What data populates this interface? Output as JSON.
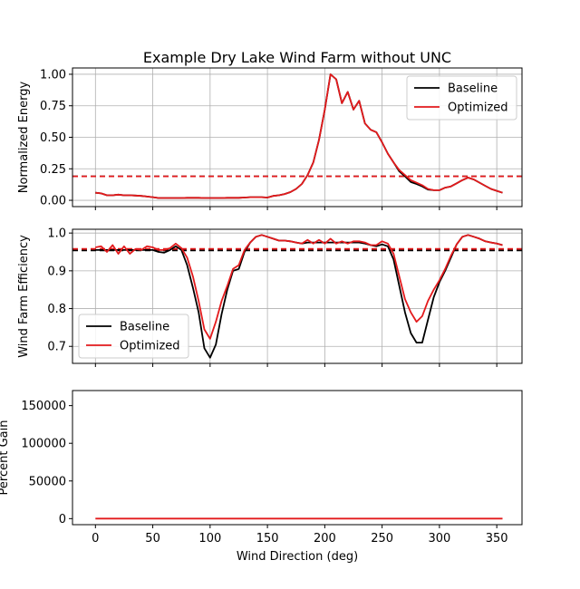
{
  "figure": {
    "title": "Example Dry Lake Wind Farm without UNC"
  },
  "chart_data": [
    {
      "type": "line",
      "title": "Example Dry Lake Wind Farm without UNC",
      "xlabel": "",
      "ylabel": "Normalized Energy",
      "xlim": [
        -20,
        372
      ],
      "ylim": [
        -0.05,
        1.05
      ],
      "xticks": [
        0,
        50,
        100,
        150,
        200,
        250,
        300,
        350
      ],
      "yticks": [
        0.0,
        0.25,
        0.5,
        0.75,
        1.0
      ],
      "ytick_labels": [
        "0.00",
        "0.25",
        "0.50",
        "0.75",
        "1.00"
      ],
      "show_xtick_labels": false,
      "grid": true,
      "legend": {
        "position": "upper right",
        "entries": [
          "Baseline",
          "Optimized"
        ]
      },
      "x": [
        0,
        5,
        10,
        15,
        20,
        25,
        30,
        35,
        40,
        45,
        50,
        55,
        60,
        65,
        70,
        75,
        80,
        85,
        90,
        95,
        100,
        105,
        110,
        115,
        120,
        125,
        130,
        135,
        140,
        145,
        150,
        155,
        160,
        165,
        170,
        175,
        180,
        185,
        190,
        195,
        200,
        205,
        210,
        215,
        220,
        225,
        230,
        235,
        240,
        245,
        250,
        255,
        260,
        265,
        270,
        275,
        280,
        285,
        290,
        295,
        300,
        305,
        310,
        315,
        320,
        325,
        330,
        335,
        340,
        345,
        350,
        355
      ],
      "series": [
        {
          "name": "Baseline",
          "color": "#000000",
          "values": [
            0.06,
            0.055,
            0.04,
            0.04,
            0.045,
            0.04,
            0.04,
            0.038,
            0.035,
            0.03,
            0.025,
            0.018,
            0.018,
            0.018,
            0.018,
            0.018,
            0.02,
            0.02,
            0.02,
            0.018,
            0.018,
            0.018,
            0.018,
            0.02,
            0.02,
            0.02,
            0.022,
            0.025,
            0.025,
            0.025,
            0.022,
            0.035,
            0.04,
            0.05,
            0.065,
            0.09,
            0.13,
            0.2,
            0.3,
            0.48,
            0.72,
            1.0,
            0.96,
            0.77,
            0.86,
            0.72,
            0.79,
            0.61,
            0.56,
            0.54,
            0.46,
            0.37,
            0.3,
            0.23,
            0.19,
            0.145,
            0.13,
            0.11,
            0.085,
            0.08,
            0.08,
            0.1,
            0.11,
            0.135,
            0.16,
            0.18,
            0.165,
            0.14,
            0.115,
            0.09,
            0.075,
            0.06
          ]
        },
        {
          "name": "Optimized",
          "color": "#e31a1c",
          "values": [
            0.06,
            0.055,
            0.04,
            0.04,
            0.045,
            0.04,
            0.04,
            0.038,
            0.035,
            0.03,
            0.025,
            0.018,
            0.018,
            0.018,
            0.018,
            0.018,
            0.02,
            0.02,
            0.02,
            0.018,
            0.018,
            0.018,
            0.018,
            0.02,
            0.02,
            0.02,
            0.022,
            0.025,
            0.025,
            0.025,
            0.022,
            0.035,
            0.04,
            0.05,
            0.065,
            0.09,
            0.13,
            0.2,
            0.3,
            0.48,
            0.72,
            1.0,
            0.96,
            0.77,
            0.86,
            0.72,
            0.79,
            0.61,
            0.56,
            0.54,
            0.46,
            0.37,
            0.3,
            0.24,
            0.2,
            0.16,
            0.14,
            0.12,
            0.09,
            0.08,
            0.08,
            0.1,
            0.11,
            0.135,
            0.16,
            0.18,
            0.165,
            0.14,
            0.115,
            0.09,
            0.075,
            0.06
          ]
        }
      ],
      "hlines": [
        {
          "y": 0.19,
          "color": "#000000",
          "style": "dashed"
        },
        {
          "y": 0.19,
          "color": "#e31a1c",
          "style": "dashed"
        }
      ]
    },
    {
      "type": "line",
      "xlabel": "",
      "ylabel": "Wind Farm Efficiency",
      "xlim": [
        -20,
        372
      ],
      "ylim": [
        0.655,
        1.01
      ],
      "xticks": [
        0,
        50,
        100,
        150,
        200,
        250,
        300,
        350
      ],
      "yticks": [
        0.7,
        0.8,
        0.9,
        1.0
      ],
      "ytick_labels": [
        "0.7",
        "0.8",
        "0.9",
        "1.0"
      ],
      "show_xtick_labels": false,
      "grid": true,
      "legend": {
        "position": "lower left",
        "entries": [
          "Baseline",
          "Optimized"
        ]
      },
      "x": [
        0,
        5,
        10,
        15,
        20,
        25,
        30,
        35,
        40,
        45,
        50,
        55,
        60,
        65,
        70,
        75,
        80,
        85,
        90,
        95,
        100,
        105,
        110,
        115,
        120,
        125,
        130,
        135,
        140,
        145,
        150,
        155,
        160,
        165,
        170,
        175,
        180,
        185,
        190,
        195,
        200,
        205,
        210,
        215,
        220,
        225,
        230,
        235,
        240,
        245,
        250,
        255,
        260,
        265,
        270,
        275,
        280,
        285,
        290,
        295,
        300,
        305,
        310,
        315,
        320,
        325,
        330,
        335,
        340,
        345,
        350,
        355
      ],
      "series": [
        {
          "name": "Baseline",
          "color": "#000000",
          "values": [
            0.955,
            0.955,
            0.955,
            0.955,
            0.955,
            0.955,
            0.955,
            0.955,
            0.955,
            0.955,
            0.955,
            0.95,
            0.948,
            0.955,
            0.965,
            0.955,
            0.915,
            0.855,
            0.79,
            0.695,
            0.67,
            0.705,
            0.785,
            0.85,
            0.9,
            0.905,
            0.95,
            0.975,
            0.99,
            0.995,
            0.99,
            0.985,
            0.98,
            0.98,
            0.978,
            0.975,
            0.972,
            0.975,
            0.975,
            0.975,
            0.975,
            0.975,
            0.975,
            0.975,
            0.975,
            0.975,
            0.975,
            0.972,
            0.968,
            0.965,
            0.97,
            0.965,
            0.93,
            0.86,
            0.79,
            0.735,
            0.71,
            0.71,
            0.77,
            0.83,
            0.87,
            0.9,
            0.935,
            0.97,
            0.99,
            0.995,
            0.99,
            0.985,
            0.978,
            0.975,
            0.972,
            0.968
          ]
        },
        {
          "name": "Optimized",
          "color": "#e31a1c",
          "values": [
            0.962,
            0.965,
            0.95,
            0.968,
            0.945,
            0.965,
            0.945,
            0.958,
            0.955,
            0.965,
            0.962,
            0.955,
            0.955,
            0.96,
            0.972,
            0.96,
            0.935,
            0.885,
            0.82,
            0.745,
            0.72,
            0.765,
            0.82,
            0.86,
            0.905,
            0.915,
            0.955,
            0.975,
            0.99,
            0.995,
            0.99,
            0.985,
            0.98,
            0.98,
            0.978,
            0.975,
            0.972,
            0.982,
            0.972,
            0.982,
            0.972,
            0.985,
            0.972,
            0.978,
            0.972,
            0.978,
            0.978,
            0.975,
            0.968,
            0.968,
            0.978,
            0.972,
            0.945,
            0.885,
            0.825,
            0.79,
            0.765,
            0.78,
            0.82,
            0.85,
            0.875,
            0.905,
            0.94,
            0.97,
            0.99,
            0.995,
            0.99,
            0.985,
            0.978,
            0.975,
            0.972,
            0.968
          ]
        }
      ],
      "hlines": [
        {
          "y": 0.954,
          "color": "#000000",
          "style": "dashed"
        },
        {
          "y": 0.958,
          "color": "#e31a1c",
          "style": "dashed"
        }
      ]
    },
    {
      "type": "line",
      "xlabel": "Wind Direction (deg)",
      "ylabel": "Percent Gain",
      "xlim": [
        -20,
        372
      ],
      "ylim": [
        -8000,
        170000
      ],
      "xticks": [
        0,
        50,
        100,
        150,
        200,
        250,
        300,
        350
      ],
      "xtick_labels": [
        "0",
        "50",
        "100",
        "150",
        "200",
        "250",
        "300",
        "350"
      ],
      "yticks": [
        0,
        50000,
        100000,
        150000
      ],
      "ytick_labels": [
        "0",
        "50000",
        "100000",
        "150000"
      ],
      "show_xtick_labels": true,
      "grid": false,
      "x": [
        0,
        355
      ],
      "series": [
        {
          "color": "#e31a1c",
          "values": [
            0,
            0
          ]
        }
      ]
    }
  ]
}
